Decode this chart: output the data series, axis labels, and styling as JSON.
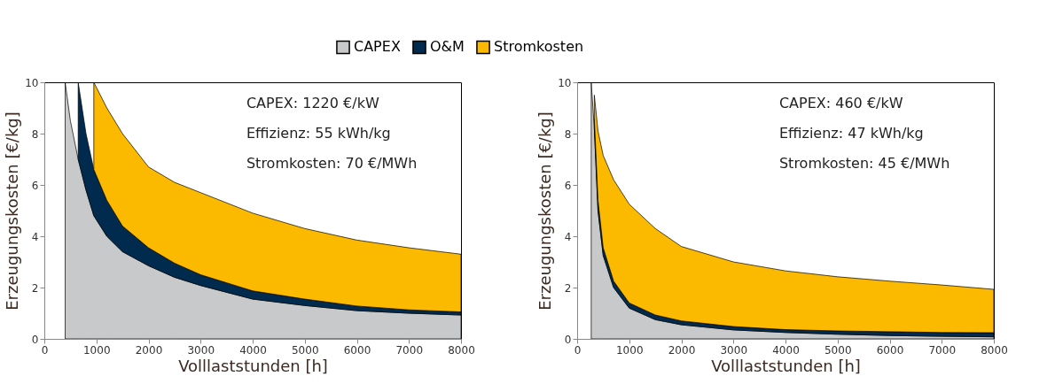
{
  "chart_data": [
    {
      "type": "area",
      "stacked": true,
      "xlabel": "Volllaststunden [h]",
      "ylabel": "Erzeugungskosten [€/kg]",
      "legend": "top",
      "x": [
        400,
        500,
        650,
        800,
        950,
        1200,
        1500,
        2000,
        2500,
        3000,
        4000,
        5000,
        6000,
        7000,
        8000
      ],
      "series": [
        {
          "name": "CAPEX",
          "color": "#c8c9cb",
          "values": [
            10,
            8.5,
            7.0,
            5.8,
            4.8,
            4.0,
            3.4,
            2.85,
            2.4,
            2.08,
            1.55,
            1.3,
            1.1,
            1.0,
            0.93
          ]
        },
        {
          "name": "O&M",
          "color": "#002b4f",
          "values": [
            null,
            null,
            3.0,
            2.2,
            1.8,
            1.4,
            1.0,
            0.7,
            0.55,
            0.42,
            0.32,
            0.25,
            0.18,
            0.13,
            0.12
          ]
        },
        {
          "name": "Stromkosten",
          "color": "#fbb900",
          "values": [
            null,
            null,
            null,
            null,
            3.4,
            3.6,
            3.6,
            3.15,
            3.15,
            3.2,
            3.03,
            2.75,
            2.57,
            2.42,
            2.25
          ]
        }
      ],
      "xlim": [
        0,
        8000
      ],
      "xticks": [
        0,
        1000,
        2000,
        3000,
        4000,
        5000,
        6000,
        7000,
        8000
      ],
      "ylim": [
        0,
        10
      ],
      "yticks": [
        0,
        2,
        4,
        6,
        8,
        10
      ],
      "grid": false,
      "annotations": [
        "CAPEX: 1220 €/kW",
        "Effizienz: 55 kWh/kg",
        "Stromkosten: 70 €/MWh"
      ]
    },
    {
      "type": "area",
      "stacked": true,
      "xlabel": "Volllaststunden [h]",
      "ylabel": "Erzeugungskosten [€/kg]",
      "legend": "top",
      "x": [
        270,
        330,
        400,
        500,
        700,
        1000,
        1500,
        2000,
        3000,
        4000,
        5000,
        6000,
        7000,
        8000
      ],
      "series": [
        {
          "name": "CAPEX",
          "color": "#c8c9cb",
          "values": [
            10,
            8.2,
            5.0,
            3.25,
            2.0,
            1.2,
            0.75,
            0.55,
            0.35,
            0.25,
            0.18,
            0.13,
            0.1,
            0.08
          ]
        },
        {
          "name": "O&M",
          "color": "#002b4f",
          "values": [
            null,
            0.4,
            0.4,
            0.3,
            0.25,
            0.2,
            0.18,
            0.15,
            0.13,
            0.11,
            0.13,
            0.15,
            0.15,
            0.16
          ]
        },
        {
          "name": "Stromkosten",
          "color": "#fbb900",
          "values": [
            null,
            0.9,
            2.7,
            3.6,
            3.95,
            3.85,
            3.37,
            2.9,
            2.52,
            2.29,
            2.11,
            1.97,
            1.85,
            1.69
          ]
        }
      ],
      "xlim": [
        0,
        8000
      ],
      "xticks": [
        0,
        1000,
        2000,
        3000,
        4000,
        5000,
        6000,
        7000,
        8000
      ],
      "ylim": [
        0,
        10
      ],
      "yticks": [
        0,
        2,
        4,
        6,
        8,
        10
      ],
      "grid": false,
      "annotations": [
        "CAPEX: 460 €/kW",
        "Effizienz: 47 kWh/kg",
        "Stromkosten: 45 €/MWh"
      ]
    }
  ]
}
